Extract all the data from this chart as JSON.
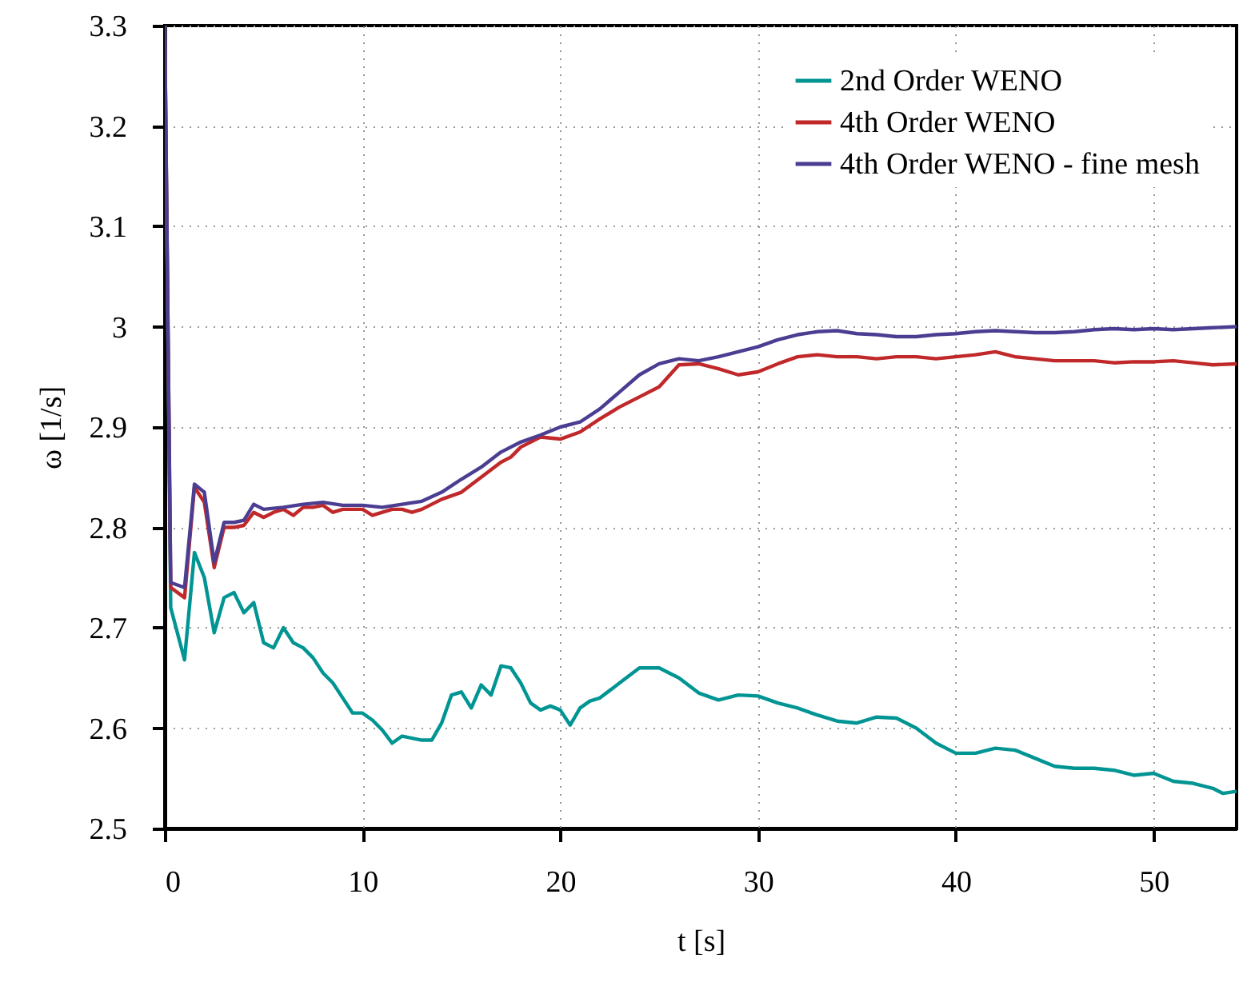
{
  "chart_data": {
    "type": "line",
    "xlabel": "t [s]",
    "ylabel": "ω [1/s]",
    "xlim": [
      0,
      54.2
    ],
    "ylim": [
      2.5,
      3.3
    ],
    "xticks": [
      0,
      10,
      20,
      30,
      40,
      50
    ],
    "yticks": [
      2.5,
      2.6,
      2.7,
      2.8,
      2.9,
      {
        "value": 3,
        "label": "3"
      },
      3.1,
      3.2,
      3.3
    ],
    "grid": true,
    "legend": "top right",
    "marker": "none",
    "line_style": "solid",
    "series": [
      {
        "name": "2nd Order WENO",
        "color": "#009593",
        "x": [
          0,
          0.3,
          1.0,
          1.5,
          2.0,
          2.5,
          3.0,
          3.5,
          4.0,
          4.5,
          5.0,
          5.5,
          6.0,
          6.5,
          7.0,
          7.5,
          8.0,
          8.5,
          9.0,
          9.5,
          10,
          10.5,
          11,
          11.5,
          12,
          12.5,
          13,
          13.5,
          14,
          14.5,
          15,
          15.5,
          16,
          16.5,
          17,
          17.5,
          18,
          18.5,
          19,
          19.5,
          20,
          20.5,
          21,
          21.5,
          22,
          23,
          24,
          25,
          26,
          27,
          28,
          29,
          30,
          31,
          32,
          33,
          34,
          35,
          36,
          37,
          38,
          39,
          40,
          41,
          42,
          43,
          44,
          45,
          46,
          47,
          48,
          49,
          50,
          51,
          52,
          53,
          53.5,
          54.2
        ],
        "values": [
          3.3,
          2.72,
          2.668,
          2.775,
          2.75,
          2.695,
          2.73,
          2.735,
          2.715,
          2.725,
          2.685,
          2.68,
          2.7,
          2.685,
          2.68,
          2.67,
          2.655,
          2.645,
          2.63,
          2.615,
          2.615,
          2.608,
          2.598,
          2.585,
          2.592,
          2.59,
          2.588,
          2.588,
          2.605,
          2.633,
          2.636,
          2.62,
          2.643,
          2.633,
          2.662,
          2.66,
          2.645,
          2.625,
          2.618,
          2.622,
          2.618,
          2.603,
          2.62,
          2.627,
          2.63,
          2.645,
          2.66,
          2.66,
          2.65,
          2.635,
          2.628,
          2.633,
          2.632,
          2.625,
          2.62,
          2.613,
          2.607,
          2.605,
          2.611,
          2.61,
          2.6,
          2.585,
          2.575,
          2.575,
          2.58,
          2.578,
          2.57,
          2.562,
          2.56,
          2.56,
          2.558,
          2.553,
          2.555,
          2.547,
          2.545,
          2.54,
          2.535,
          2.537
        ]
      },
      {
        "name": "4th Order WENO",
        "color": "#c0282a",
        "x": [
          0,
          0.3,
          1.0,
          1.5,
          2.0,
          2.5,
          3,
          3.5,
          4,
          4.5,
          5,
          5.5,
          6,
          6.5,
          7,
          7.5,
          8,
          8.5,
          9,
          9.5,
          10,
          10.5,
          11,
          11.5,
          12,
          12.5,
          13,
          14,
          15,
          16,
          17,
          17.5,
          18,
          19,
          20,
          21,
          22,
          23,
          24,
          25,
          26,
          27,
          28,
          29,
          30,
          31,
          32,
          33,
          34,
          35,
          36,
          37,
          38,
          39,
          40,
          41,
          42,
          43,
          44,
          45,
          46,
          47,
          48,
          49,
          50,
          51,
          52,
          53,
          54.2
        ],
        "values": [
          3.3,
          2.74,
          2.73,
          2.84,
          2.825,
          2.76,
          2.8,
          2.8,
          2.802,
          2.815,
          2.81,
          2.815,
          2.818,
          2.812,
          2.82,
          2.82,
          2.822,
          2.815,
          2.818,
          2.818,
          2.818,
          2.812,
          2.815,
          2.818,
          2.818,
          2.815,
          2.818,
          2.828,
          2.835,
          2.85,
          2.865,
          2.87,
          2.88,
          2.89,
          2.888,
          2.895,
          2.908,
          2.92,
          2.93,
          2.94,
          2.962,
          2.963,
          2.958,
          2.952,
          2.955,
          2.963,
          2.97,
          2.972,
          2.97,
          2.97,
          2.968,
          2.97,
          2.97,
          2.968,
          2.97,
          2.972,
          2.975,
          2.97,
          2.968,
          2.966,
          2.966,
          2.966,
          2.964,
          2.965,
          2.965,
          2.966,
          2.964,
          2.962,
          2.963
        ]
      },
      {
        "name": "4th Order WENO - fine mesh",
        "color": "#4b3d91",
        "x": [
          0,
          0.3,
          1.0,
          1.5,
          2.0,
          2.5,
          3,
          3.5,
          4,
          4.5,
          5,
          6,
          7,
          8,
          9,
          10,
          11,
          12,
          13,
          14,
          15,
          16,
          17,
          18,
          19,
          20,
          21,
          22,
          23,
          24,
          25,
          26,
          27,
          28,
          29,
          30,
          31,
          32,
          33,
          34,
          35,
          36,
          37,
          38,
          39,
          40,
          41,
          42,
          43,
          44,
          45,
          46,
          47,
          48,
          49,
          50,
          51,
          52,
          53,
          54.2
        ],
        "values": [
          3.3,
          2.745,
          2.74,
          2.843,
          2.835,
          2.765,
          2.805,
          2.805,
          2.807,
          2.823,
          2.818,
          2.82,
          2.823,
          2.825,
          2.822,
          2.822,
          2.82,
          2.823,
          2.826,
          2.835,
          2.848,
          2.86,
          2.875,
          2.885,
          2.892,
          2.9,
          2.905,
          2.918,
          2.935,
          2.952,
          2.963,
          2.968,
          2.966,
          2.97,
          2.975,
          2.98,
          2.987,
          2.992,
          2.995,
          2.996,
          2.993,
          2.992,
          2.99,
          2.99,
          2.992,
          2.993,
          2.995,
          2.996,
          2.995,
          2.994,
          2.994,
          2.995,
          2.997,
          2.998,
          2.997,
          2.998,
          2.997,
          2.998,
          2.999,
          3.0
        ]
      }
    ]
  }
}
